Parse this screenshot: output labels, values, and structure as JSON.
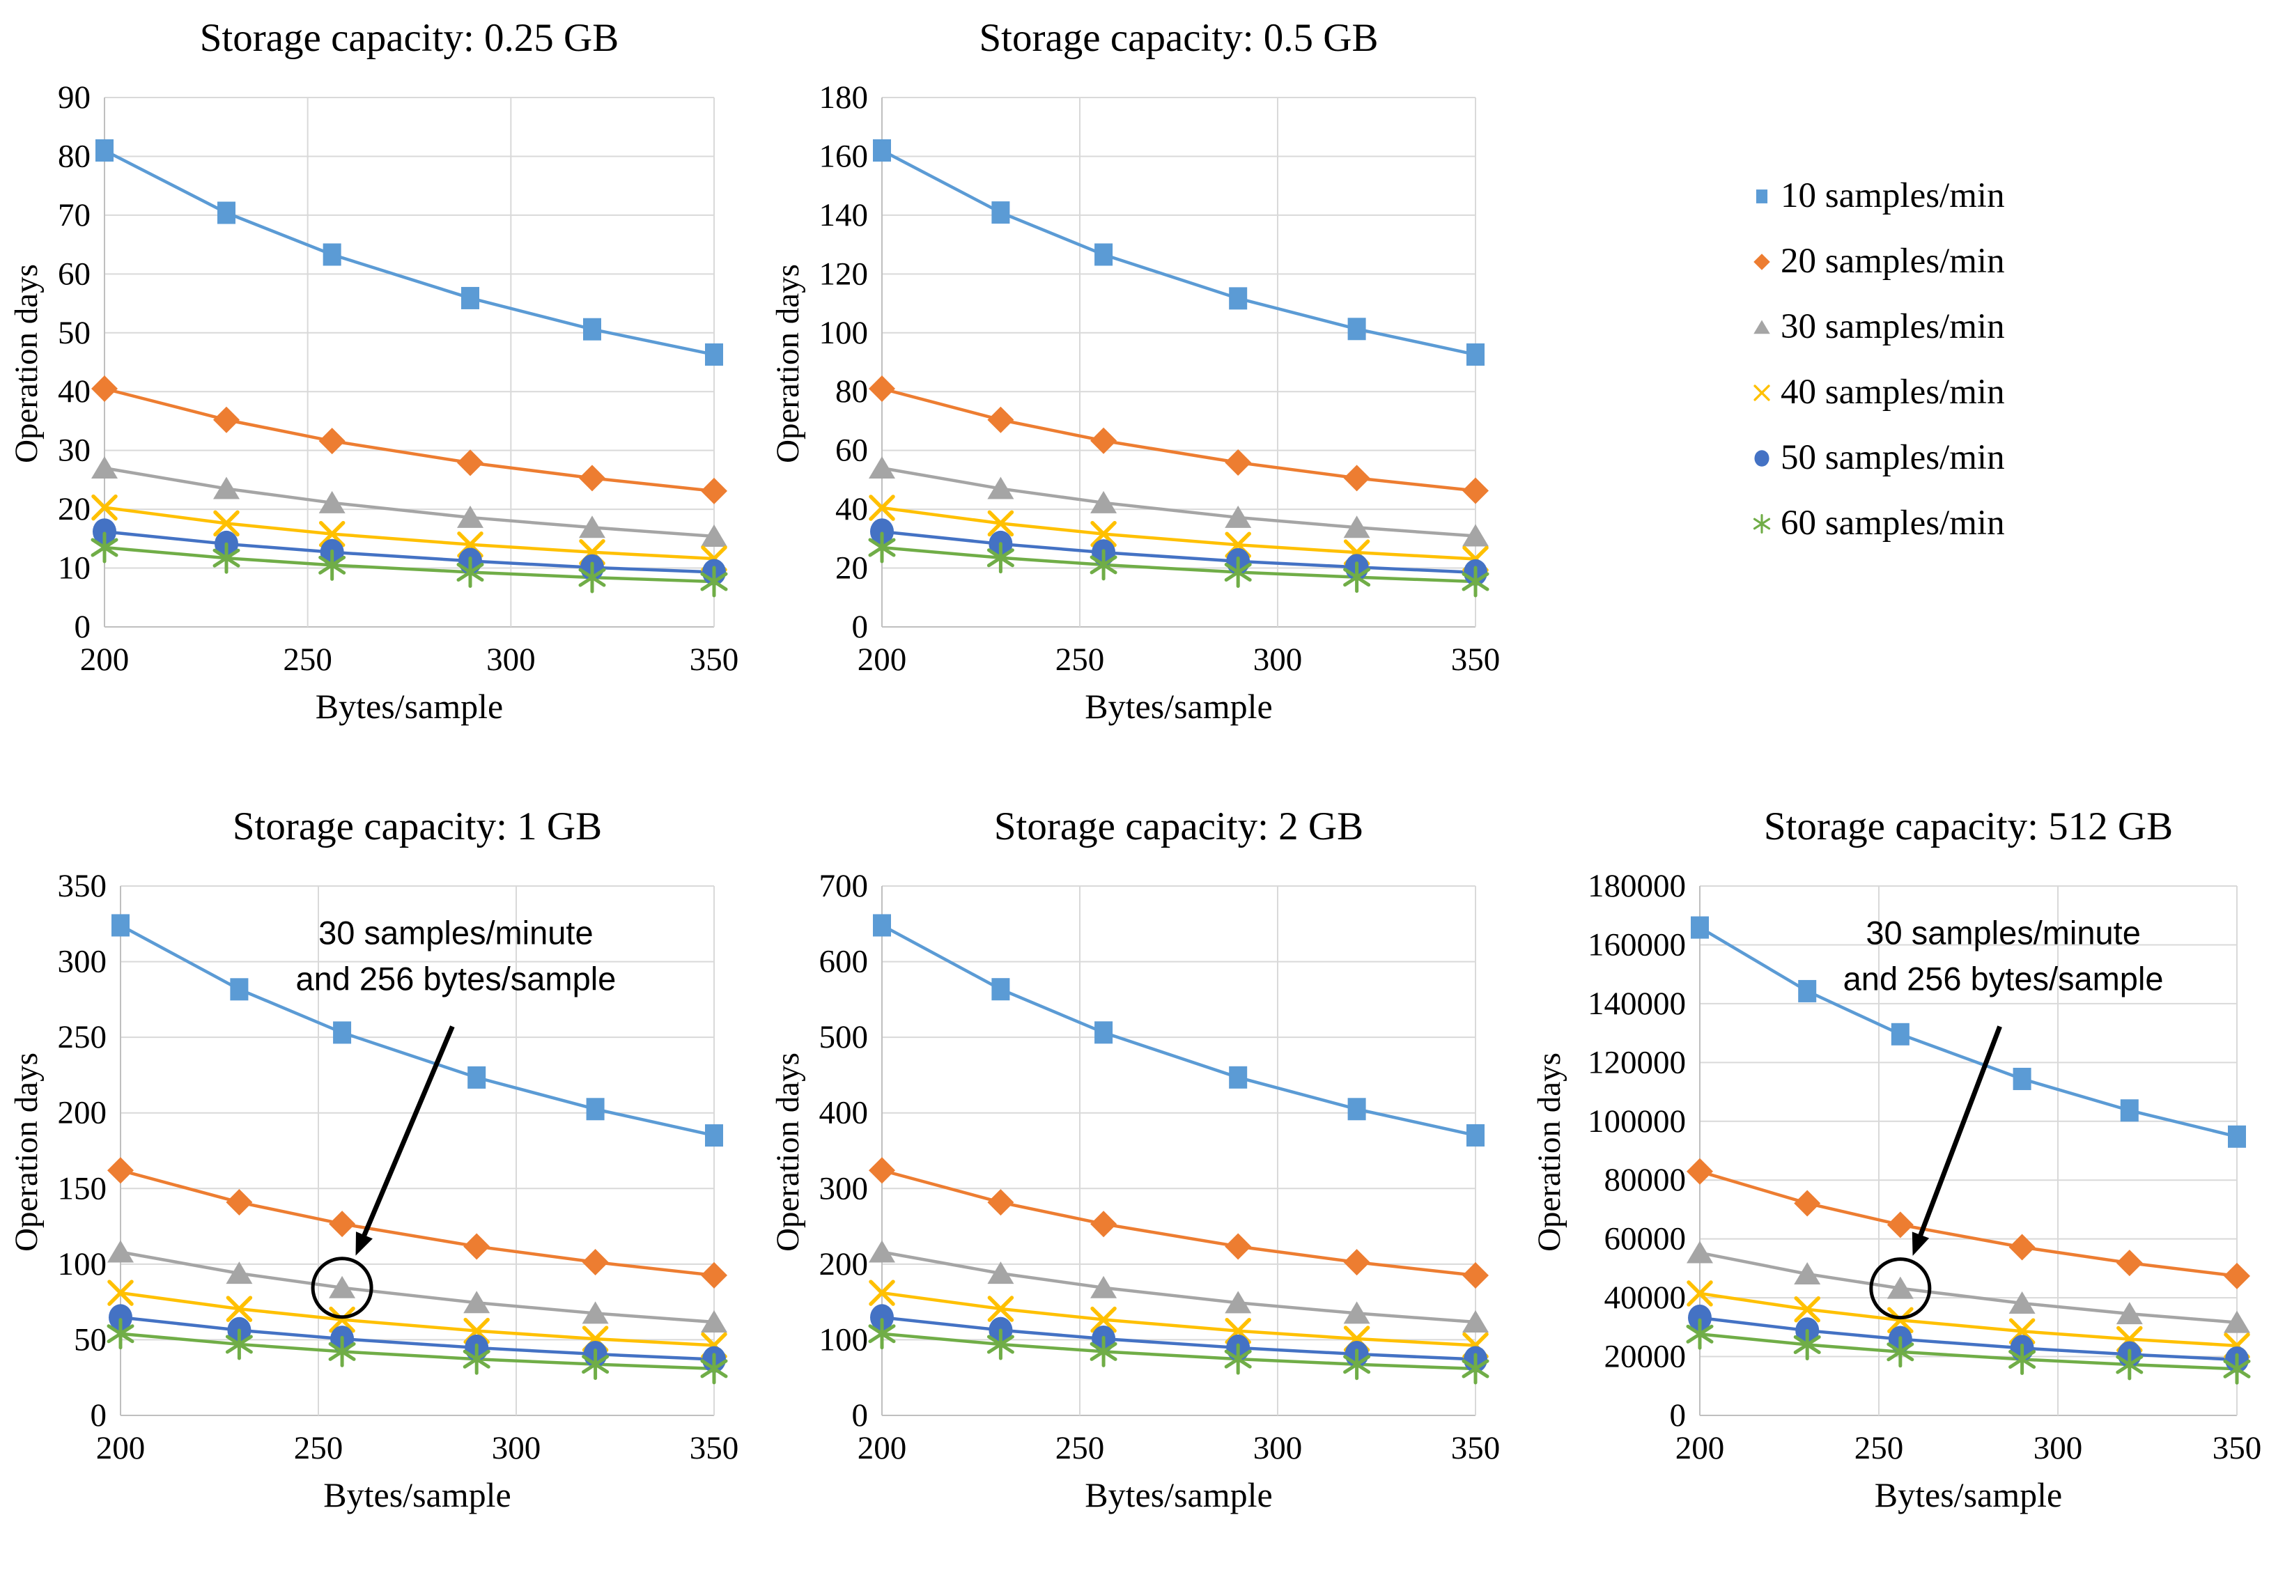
{
  "legend": {
    "items": [
      {
        "label": "10 samples/min",
        "marker": "square",
        "color": "#5B9BD5"
      },
      {
        "label": "20 samples/min",
        "marker": "diamond",
        "color": "#ED7D31"
      },
      {
        "label": "30 samples/min",
        "marker": "triangle",
        "color": "#A5A5A5"
      },
      {
        "label": "40 samples/min",
        "marker": "x",
        "color": "#FFC000"
      },
      {
        "label": "50 samples/min",
        "marker": "circle",
        "color": "#4472C4"
      },
      {
        "label": "60 samples/min",
        "marker": "asterisk",
        "color": "#70AD47"
      }
    ]
  },
  "annotation_text": "30 samples/minute and 256 bytes/sample",
  "chart_data": [
    {
      "type": "line",
      "title": "Storage capacity: 0.25 GB",
      "xlabel": "Bytes/sample",
      "ylabel": "Operation days",
      "x": [
        200,
        230,
        256,
        290,
        320,
        350
      ],
      "xlim": [
        200,
        350
      ],
      "xticks": [
        200,
        250,
        300,
        350
      ],
      "ylim": [
        0,
        90
      ],
      "yticks": [
        0,
        10,
        20,
        30,
        40,
        50,
        60,
        70,
        80,
        90
      ],
      "grid": true,
      "series": [
        {
          "name": "10 samples/min",
          "values": [
            81.0,
            70.4,
            63.3,
            55.9,
            50.6,
            46.3
          ]
        },
        {
          "name": "20 samples/min",
          "values": [
            40.5,
            35.2,
            31.6,
            27.9,
            25.3,
            23.1
          ]
        },
        {
          "name": "30 samples/min",
          "values": [
            27.0,
            23.5,
            21.1,
            18.6,
            16.9,
            15.4
          ]
        },
        {
          "name": "40 samples/min",
          "values": [
            20.3,
            17.6,
            15.8,
            14.0,
            12.7,
            11.6
          ]
        },
        {
          "name": "50 samples/min",
          "values": [
            16.2,
            14.1,
            12.7,
            11.2,
            10.1,
            9.3
          ]
        },
        {
          "name": "60 samples/min",
          "values": [
            13.5,
            11.7,
            10.5,
            9.3,
            8.4,
            7.7
          ]
        }
      ],
      "annotation": null
    },
    {
      "type": "line",
      "title": "Storage capacity: 0.5 GB",
      "xlabel": "Bytes/sample",
      "ylabel": "Operation days",
      "x": [
        200,
        230,
        256,
        290,
        320,
        350
      ],
      "xlim": [
        200,
        350
      ],
      "xticks": [
        200,
        250,
        300,
        350
      ],
      "ylim": [
        0,
        180
      ],
      "yticks": [
        0,
        20,
        40,
        60,
        80,
        100,
        120,
        140,
        160,
        180
      ],
      "grid": true,
      "series": [
        {
          "name": "10 samples/min",
          "values": [
            162.0,
            140.9,
            126.6,
            111.7,
            101.3,
            92.6
          ]
        },
        {
          "name": "20 samples/min",
          "values": [
            81.0,
            70.4,
            63.3,
            55.9,
            50.6,
            46.3
          ]
        },
        {
          "name": "30 samples/min",
          "values": [
            54.0,
            47.0,
            42.2,
            37.2,
            33.8,
            30.9
          ]
        },
        {
          "name": "40 samples/min",
          "values": [
            40.5,
            35.2,
            31.6,
            27.9,
            25.3,
            23.1
          ]
        },
        {
          "name": "50 samples/min",
          "values": [
            32.4,
            28.2,
            25.3,
            22.3,
            20.3,
            18.5
          ]
        },
        {
          "name": "60 samples/min",
          "values": [
            27.0,
            23.5,
            21.1,
            18.6,
            16.9,
            15.4
          ]
        }
      ],
      "annotation": null
    },
    {
      "type": "line",
      "title": "Storage capacity: 1 GB",
      "xlabel": "Bytes/sample",
      "ylabel": "Operation days",
      "x": [
        200,
        230,
        256,
        290,
        320,
        350
      ],
      "xlim": [
        200,
        350
      ],
      "xticks": [
        200,
        250,
        300,
        350
      ],
      "ylim": [
        0,
        350
      ],
      "yticks": [
        0,
        50,
        100,
        150,
        200,
        250,
        300,
        350
      ],
      "grid": true,
      "series": [
        {
          "name": "10 samples/min",
          "values": [
            324.0,
            281.7,
            253.1,
            223.4,
            202.5,
            185.1
          ]
        },
        {
          "name": "20 samples/min",
          "values": [
            162.0,
            140.9,
            126.6,
            111.7,
            101.3,
            92.6
          ]
        },
        {
          "name": "30 samples/min",
          "values": [
            108.0,
            93.9,
            84.4,
            74.5,
            67.5,
            61.7
          ]
        },
        {
          "name": "40 samples/min",
          "values": [
            81.0,
            70.4,
            63.3,
            55.9,
            50.6,
            46.3
          ]
        },
        {
          "name": "50 samples/min",
          "values": [
            64.8,
            56.3,
            50.6,
            44.7,
            40.5,
            37.0
          ]
        },
        {
          "name": "60 samples/min",
          "values": [
            54.0,
            47.0,
            42.2,
            37.2,
            33.8,
            30.9
          ]
        }
      ],
      "annotation": {
        "lines": [
          "30 samples/minute",
          "and 256 bytes/sample"
        ],
        "target_series": "30 samples/min",
        "target_x": 256,
        "target_y": 84.4
      }
    },
    {
      "type": "line",
      "title": "Storage capacity: 2 GB",
      "xlabel": "Bytes/sample",
      "ylabel": "Operation days",
      "x": [
        200,
        230,
        256,
        290,
        320,
        350
      ],
      "xlim": [
        200,
        350
      ],
      "xticks": [
        200,
        250,
        300,
        350
      ],
      "ylim": [
        0,
        700
      ],
      "yticks": [
        0,
        100,
        200,
        300,
        400,
        500,
        600,
        700
      ],
      "grid": true,
      "series": [
        {
          "name": "10 samples/min",
          "values": [
            648.0,
            563.5,
            506.3,
            446.9,
            405.0,
            370.3
          ]
        },
        {
          "name": "20 samples/min",
          "values": [
            324.0,
            281.7,
            253.1,
            223.4,
            202.5,
            185.1
          ]
        },
        {
          "name": "30 samples/min",
          "values": [
            216.0,
            187.8,
            168.8,
            148.9,
            135.0,
            123.4
          ]
        },
        {
          "name": "40 samples/min",
          "values": [
            162.0,
            140.9,
            126.6,
            111.7,
            101.3,
            92.6
          ]
        },
        {
          "name": "50 samples/min",
          "values": [
            129.6,
            112.7,
            101.3,
            89.4,
            81.0,
            74.1
          ]
        },
        {
          "name": "60 samples/min",
          "values": [
            108.0,
            93.9,
            84.4,
            74.5,
            67.5,
            61.7
          ]
        }
      ],
      "annotation": null
    },
    {
      "type": "line",
      "title": "Storage capacity: 512 GB",
      "xlabel": "Bytes/sample",
      "ylabel": "Operation days",
      "x": [
        200,
        230,
        256,
        290,
        320,
        350
      ],
      "xlim": [
        200,
        350
      ],
      "xticks": [
        200,
        250,
        300,
        350
      ],
      "ylim": [
        0,
        180000
      ],
      "yticks": [
        0,
        20000,
        40000,
        60000,
        80000,
        100000,
        120000,
        140000,
        160000,
        180000
      ],
      "grid": true,
      "series": [
        {
          "name": "10 samples/min",
          "values": [
            165888,
            144251,
            129600,
            114405,
            103680,
            94793
          ]
        },
        {
          "name": "20 samples/min",
          "values": [
            82944,
            72126,
            64800,
            57203,
            51840,
            47396
          ]
        },
        {
          "name": "30 samples/min",
          "values": [
            55296,
            48084,
            43200,
            38134,
            34560,
            31598
          ]
        },
        {
          "name": "40 samples/min",
          "values": [
            41472,
            36063,
            32400,
            28601,
            25920,
            23698
          ]
        },
        {
          "name": "50 samples/min",
          "values": [
            33178,
            28850,
            25920,
            22881,
            20736,
            18959
          ]
        },
        {
          "name": "60 samples/min",
          "values": [
            27648,
            24042,
            21600,
            19067,
            17280,
            15799
          ]
        }
      ],
      "annotation": {
        "lines": [
          "30 samples/minute",
          "and 256 bytes/sample"
        ],
        "target_series": "30 samples/min",
        "target_x": 256,
        "target_y": 43200
      }
    }
  ]
}
